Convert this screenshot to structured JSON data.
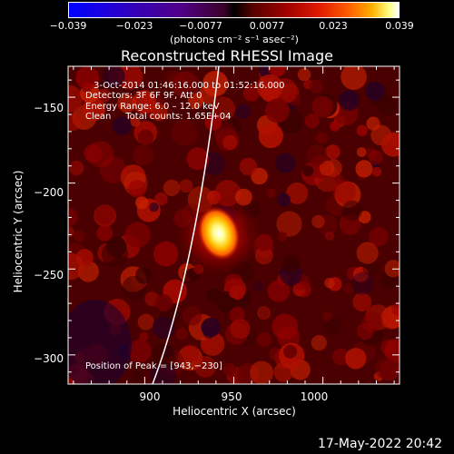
{
  "colorbar": {
    "ticks": [
      "−0.039",
      "−0.023",
      "−0.0077",
      "0.0077",
      "0.023",
      "0.039"
    ],
    "units": "(photons cm⁻² s⁻¹ asec⁻²)"
  },
  "chart_data": {
    "type": "heatmap",
    "title": "Reconstructed RHESSI Image",
    "xlabel": "Heliocentric X (arcsec)",
    "ylabel": "Heliocentric Y (arcsec)",
    "xlim": [
      857,
      1043
    ],
    "ylim": [
      -317,
      -132
    ],
    "xticks": [
      "900",
      "950",
      "1000"
    ],
    "yticks": [
      "−150",
      "−200",
      "−250",
      "−300"
    ],
    "color_range": [
      -0.039,
      0.039
    ],
    "colormap": "blue-black-red-yellow-white",
    "peak": {
      "x": 943,
      "y": -230
    },
    "limb": "white arc",
    "info_lines": [
      "3-Oct-2014 01:46:16.000 to 01:52:16.000",
      "Detectors: 3F 6F 9F, Att 0",
      "Energy Range: 6.0 – 12.0 keV",
      "Clean     Total counts: 1.65E+04"
    ],
    "peak_label": "Position of Peak = [943,−230]"
  },
  "footer": {
    "timestamp": "17-May-2022 20:42"
  }
}
